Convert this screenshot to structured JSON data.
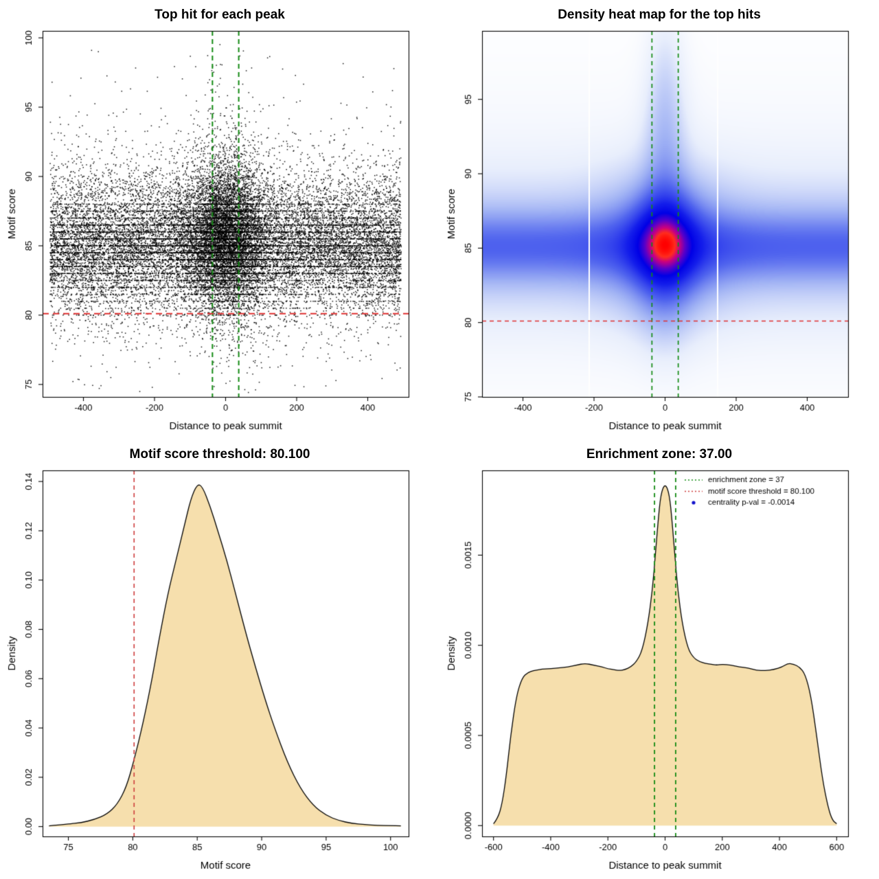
{
  "page": {
    "background": "#FFFFFF"
  },
  "annotations": {
    "motif_score_threshold": "80.100",
    "enrichment_zone": "37.00",
    "centrality_p_val": "-0.0014"
  },
  "chart_data": [
    {
      "id": "top-hit-scatter",
      "type": "scatter",
      "title": "Top hit for each peak",
      "xlabel": "Distance to peak summit",
      "ylabel": "Motif score",
      "xlim": [
        -515,
        515
      ],
      "ylim": [
        74.1,
        100.5
      ],
      "xticks": {
        "values": [
          -400,
          -200,
          0,
          200,
          400
        ],
        "labels": [
          "-400",
          "-200",
          "0",
          "200",
          "400"
        ]
      },
      "yticks": {
        "values": [
          75,
          80,
          85,
          90,
          95,
          100
        ],
        "labels": [
          "75",
          "80",
          "85",
          "90",
          "95",
          "100"
        ]
      },
      "point_color": "#000000",
      "generator": {
        "seed": 20240,
        "n": 26000,
        "point_size": 1.5,
        "central_frac": 0.3,
        "central_sd": 58,
        "x_half_range": 494,
        "y_mixture": [
          {
            "w": 0.78,
            "mu": 85,
            "sd": 2.1
          },
          {
            "w": 0.14,
            "mu": 86,
            "sd": 3.2
          },
          {
            "w": 0.08,
            "mu": 83,
            "sd": 3.4
          }
        ],
        "central_lift_frac": 0.5,
        "central_lift_scale": 1.6,
        "high_tail_frac": 0.02,
        "snap_frac": 0.33
      },
      "hlines": [
        {
          "name": "motif-score-threshold",
          "value": 80.1,
          "color": "#E03030",
          "width": 2,
          "dash": [
            9,
            6
          ]
        }
      ],
      "vlines": [
        {
          "name": "enrichment-zone-left",
          "value": -37,
          "color": "#128A12",
          "width": 2,
          "dash": [
            7,
            5
          ]
        },
        {
          "name": "enrichment-zone-right",
          "value": 37,
          "color": "#128A12",
          "width": 2,
          "dash": [
            7,
            5
          ]
        }
      ]
    },
    {
      "id": "top-hit-heatmap",
      "type": "heatmap",
      "title": "Density heat map for the top hits",
      "xlabel": "Distance to peak summit",
      "ylabel": "Motif score",
      "xlim": [
        -515,
        515
      ],
      "ylim": [
        75,
        99.6
      ],
      "xticks": {
        "values": [
          -400,
          -200,
          0,
          200,
          400
        ],
        "labels": [
          "-400",
          "-200",
          "0",
          "200",
          "400"
        ]
      },
      "yticks": {
        "values": [
          75,
          80,
          85,
          90,
          95
        ],
        "labels": [
          "75",
          "80",
          "85",
          "90",
          "95"
        ]
      },
      "hotspot": {
        "x": 0,
        "y": 85.3
      },
      "gamma": 0.75,
      "colormap_stops": [
        [
          0.0,
          "#FFFFFF"
        ],
        [
          0.1,
          "#E8EEFC"
        ],
        [
          0.25,
          "#A0B2F4"
        ],
        [
          0.42,
          "#5064EE"
        ],
        [
          0.6,
          "#141EEB"
        ],
        [
          0.72,
          "#0000E6"
        ],
        [
          0.82,
          "#5A00C8"
        ],
        [
          0.9,
          "#C80082"
        ],
        [
          0.95,
          "#FF2D1E"
        ],
        [
          1.0,
          "#FF0000"
        ]
      ],
      "density_model": {
        "components": [
          {
            "amp": 0.6,
            "y_mu": 85.1,
            "y_sd": 1.5,
            "x_sd": null
          },
          {
            "amp": 0.3,
            "y_mu": 85.1,
            "y_sd": 3.2,
            "x_sd": null
          },
          {
            "amp": 0.08,
            "y_mu": 86.0,
            "y_sd": 6.0,
            "x_sd": null
          },
          {
            "amp": 1.35,
            "y_mu": 85.3,
            "y_sd": 2.0,
            "x_sd": 58
          },
          {
            "amp": 0.45,
            "y_mu": 85.2,
            "y_sd": 3.2,
            "x_sd": 115
          },
          {
            "amp": 0.33,
            "y_mu": 90.0,
            "y_sd": 5.0,
            "x_sd": 42
          },
          {
            "amp": 0.12,
            "y_mu": 95.5,
            "y_sd": 3.5,
            "x_sd": 30
          },
          {
            "amp": 0.18,
            "y_mu": 81.5,
            "y_sd": 2.5,
            "x_sd": 55
          }
        ]
      },
      "white_gaps_x": [
        -215,
        145
      ],
      "hlines": [
        {
          "name": "motif-score-threshold",
          "value": 80.1,
          "color": "#E03030",
          "width": 1.4,
          "dash": [
            6,
            5
          ]
        }
      ],
      "vlines": [
        {
          "name": "enrichment-zone-left",
          "value": -37,
          "color": "#128A12",
          "width": 1.7,
          "dash": [
            6,
            5
          ]
        },
        {
          "name": "enrichment-zone-right",
          "value": 37,
          "color": "#128A12",
          "width": 1.7,
          "dash": [
            6,
            5
          ]
        }
      ]
    },
    {
      "id": "motif-score-density",
      "type": "area",
      "title": "Motif score threshold: 80.100",
      "xlabel": "Motif score",
      "ylabel": "Density",
      "xlim": [
        73.0,
        101.4
      ],
      "ylim": [
        -0.004,
        0.1445
      ],
      "xticks": {
        "values": [
          75,
          80,
          85,
          90,
          95,
          100
        ],
        "labels": [
          "75",
          "80",
          "85",
          "90",
          "95",
          "100"
        ]
      },
      "yticks": {
        "values": [
          0,
          0.02,
          0.04,
          0.06,
          0.08,
          0.1,
          0.12,
          0.14
        ],
        "labels": [
          "0.00",
          "0.02",
          "0.04",
          "0.06",
          "0.08",
          "0.10",
          "0.12",
          "0.14"
        ]
      },
      "fill": "#F6DFAD",
      "line_color": "#000000",
      "points": {
        "x": [
          73.5,
          75,
          76,
          77,
          78,
          78.8,
          79.5,
          80.1,
          80.8,
          81.5,
          82,
          82.7,
          83.3,
          84,
          84.5,
          85,
          85.4,
          86,
          86.6,
          87.3,
          88,
          88.8,
          89.5,
          90.3,
          91,
          92,
          93,
          94,
          95,
          96,
          97,
          98,
          99,
          100,
          100.8
        ],
        "y": [
          0.0003,
          0.001,
          0.0016,
          0.0028,
          0.005,
          0.009,
          0.016,
          0.027,
          0.042,
          0.06,
          0.075,
          0.094,
          0.107,
          0.122,
          0.133,
          0.139,
          0.138,
          0.13,
          0.12,
          0.108,
          0.094,
          0.078,
          0.065,
          0.051,
          0.04,
          0.026,
          0.0155,
          0.0085,
          0.0045,
          0.0024,
          0.0013,
          0.0008,
          0.0005,
          0.0004,
          0.0003
        ]
      },
      "vlines": [
        {
          "name": "motif-score-threshold",
          "value": 80.1,
          "color": "#CD3B3B",
          "width": 1.6,
          "dash": [
            6,
            5
          ]
        }
      ]
    },
    {
      "id": "position-density",
      "type": "area",
      "title": "Enrichment zone: 37.00",
      "xlabel": "Distance to peak summit",
      "ylabel": "Density",
      "xlim": [
        -640,
        640
      ],
      "ylim": [
        -6e-05,
        0.00197
      ],
      "xticks": {
        "values": [
          -600,
          -400,
          -200,
          0,
          200,
          400,
          600
        ],
        "labels": [
          "-600",
          "-400",
          "-200",
          "0",
          "200",
          "400",
          "600"
        ]
      },
      "yticks": {
        "values": [
          0,
          0.0005,
          0.001,
          0.0015
        ],
        "labels": [
          "0.0000",
          "0.0005",
          "0.0010",
          "0.0015"
        ]
      },
      "fill": "#F6DFAD",
      "line_color": "#000000",
      "points": {
        "x": [
          -600,
          -585,
          -570,
          -555,
          -540,
          -520,
          -500,
          -480,
          -460,
          -440,
          -420,
          -400,
          -370,
          -340,
          -310,
          -280,
          -250,
          -220,
          -200,
          -180,
          -160,
          -140,
          -120,
          -100,
          -80,
          -60,
          -45,
          -35,
          -25,
          -15,
          0,
          15,
          25,
          35,
          45,
          60,
          80,
          100,
          120,
          140,
          160,
          180,
          200,
          230,
          260,
          290,
          320,
          350,
          380,
          410,
          430,
          450,
          470,
          490,
          510,
          530,
          550,
          570,
          585,
          600
        ],
        "y": [
          1e-05,
          4e-05,
          0.00012,
          0.00028,
          0.0005,
          0.00072,
          0.00082,
          0.00085,
          0.00086,
          0.000865,
          0.00087,
          0.00087,
          0.000875,
          0.00088,
          0.00089,
          0.0009,
          0.00089,
          0.00088,
          0.00087,
          0.000865,
          0.00086,
          0.000865,
          0.00088,
          0.00091,
          0.00097,
          0.00112,
          0.0013,
          0.00148,
          0.00168,
          0.00184,
          0.0019,
          0.00184,
          0.00168,
          0.00148,
          0.0013,
          0.00112,
          0.00098,
          0.00093,
          0.00091,
          0.0009,
          0.000895,
          0.00089,
          0.000895,
          0.00089,
          0.00088,
          0.000875,
          0.00086,
          0.00086,
          0.000865,
          0.00088,
          0.0009,
          0.000895,
          0.00088,
          0.00084,
          0.00072,
          0.0005,
          0.00026,
          0.0001,
          3e-05,
          1e-05
        ]
      },
      "vlines": [
        {
          "name": "enrichment-zone-left",
          "value": -37,
          "color": "#128A12",
          "width": 1.8,
          "dash": [
            6,
            5
          ]
        },
        {
          "name": "enrichment-zone-right",
          "value": 37,
          "color": "#128A12",
          "width": 1.8,
          "dash": [
            6,
            5
          ]
        }
      ],
      "legend": {
        "items": [
          {
            "type": "dotted-line",
            "color": "#128A12",
            "label": "enrichment zone = 37"
          },
          {
            "type": "dotted-line",
            "color": "#CD3B3B",
            "label": "motif score threshold = 80.100"
          },
          {
            "type": "point",
            "color": "#1414CC",
            "label": "centrality p-val = -0.0014"
          }
        ]
      }
    }
  ]
}
